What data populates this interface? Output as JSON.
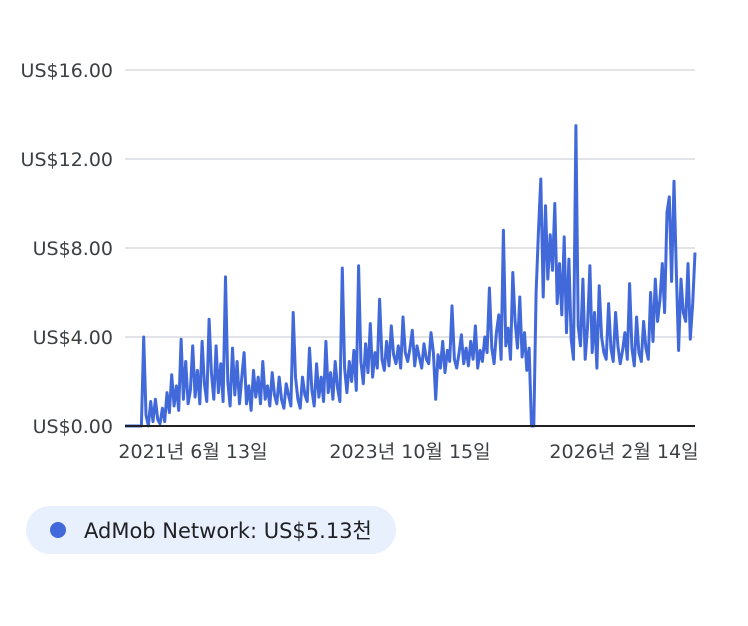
{
  "chart_data": {
    "type": "line",
    "y_ticks": [
      "US$0.00",
      "US$4.00",
      "US$8.00",
      "US$12.00",
      "US$16.00"
    ],
    "y_tick_values": [
      0,
      4,
      8,
      12,
      16
    ],
    "ylim": [
      0,
      16
    ],
    "x_ticks": [
      "2021년 6월 13일",
      "2023년 10월 15일",
      "2026년 2월 14일"
    ],
    "grid": true,
    "legend_position": "bottom-left",
    "series": [
      {
        "name": "AdMob Network",
        "color": "#4169d9",
        "values": [
          0,
          0,
          0,
          0,
          0,
          0,
          0,
          0,
          4.0,
          0.5,
          0,
          1.1,
          0.2,
          1.2,
          0.3,
          0.1,
          0.8,
          0.2,
          1.5,
          0.6,
          2.3,
          0.9,
          1.8,
          0.7,
          3.9,
          1.2,
          2.9,
          1.0,
          1.6,
          3.6,
          1.3,
          2.5,
          1.0,
          3.8,
          1.9,
          1.1,
          4.8,
          2.4,
          1.2,
          3.6,
          1.5,
          2.8,
          1.1,
          6.7,
          2.0,
          0.9,
          3.5,
          1.4,
          2.9,
          1.0,
          2.2,
          3.3,
          1.0,
          1.8,
          0.7,
          2.5,
          1.3,
          2.2,
          1.0,
          2.9,
          1.2,
          1.8,
          0.9,
          2.4,
          1.4,
          1.0,
          2.2,
          1.2,
          0.8,
          1.9,
          1.4,
          0.9,
          5.1,
          2.2,
          1.2,
          0.8,
          2.2,
          1.4,
          1.1,
          3.5,
          1.6,
          0.9,
          2.8,
          1.3,
          2.2,
          1.1,
          3.8,
          1.5,
          2.4,
          1.2,
          2.9,
          1.7,
          1.1,
          7.1,
          2.6,
          1.5,
          2.9,
          2.0,
          3.4,
          1.6,
          7.2,
          2.9,
          1.9,
          3.7,
          2.4,
          4.6,
          2.2,
          3.3,
          2.6,
          5.7,
          3.0,
          2.5,
          3.8,
          2.7,
          4.5,
          3.2,
          2.8,
          3.6,
          2.6,
          4.9,
          3.3,
          2.9,
          3.5,
          4.3,
          2.7,
          3.6,
          3.1,
          2.6,
          3.7,
          3.0,
          2.8,
          4.2,
          3.3,
          1.2,
          3.2,
          2.6,
          3.8,
          2.4,
          3.4,
          2.9,
          5.4,
          3.0,
          2.6,
          3.3,
          4.1,
          2.8,
          3.5,
          2.7,
          3.8,
          3.0,
          4.5,
          2.6,
          3.4,
          2.9,
          4.0,
          3.3,
          6.2,
          3.5,
          2.8,
          4.2,
          5.0,
          3.0,
          8.8,
          3.6,
          4.4,
          3.0,
          6.9,
          4.7,
          3.5,
          5.8,
          3.1,
          4.2,
          2.5,
          3.5,
          0,
          0,
          6.0,
          8.8,
          11.1,
          5.8,
          9.9,
          6.6,
          8.6,
          7.0,
          10.0,
          5.5,
          7.3,
          5.0,
          8.5,
          4.2,
          7.5,
          3.9,
          3.0,
          13.5,
          4.5,
          3.6,
          6.6,
          3.0,
          4.4,
          7.2,
          3.3,
          5.1,
          2.6,
          6.3,
          4.0,
          3.3,
          3.0,
          5.5,
          3.5,
          2.9,
          5.1,
          3.6,
          2.8,
          3.4,
          4.2,
          3.0,
          6.4,
          3.5,
          2.7,
          4.9,
          3.3,
          2.9,
          4.7,
          3.5,
          3.0,
          6.0,
          3.8,
          6.6,
          4.7,
          5.7,
          7.3,
          5.1,
          9.6,
          10.3,
          6.5,
          11.0,
          7.0,
          3.4,
          6.6,
          5.1,
          4.7,
          7.3,
          3.9,
          5.5,
          7.8
        ]
      }
    ]
  },
  "legend": {
    "label": "AdMob Network: US$5.13천",
    "dot_color": "#4169d9"
  }
}
